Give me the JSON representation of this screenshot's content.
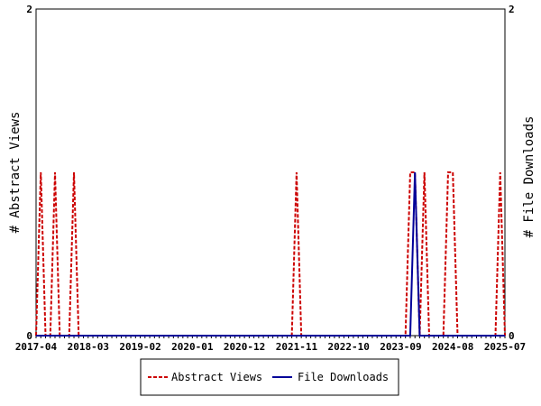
{
  "chart_data": {
    "type": "line",
    "title": "",
    "y_left_label": "# Abstract Views",
    "y_right_label": "# File Downloads",
    "y_left_range": [
      0,
      2
    ],
    "y_right_range": [
      0,
      2
    ],
    "y_left_ticks": [
      "0",
      "2"
    ],
    "y_right_ticks": [
      "0",
      "2"
    ],
    "x_range": [
      "2017-04",
      "2025-07"
    ],
    "x_tick_labels": [
      "2017-04",
      "2018-03",
      "2019-02",
      "2020-01",
      "2020-12",
      "2021-11",
      "2022-10",
      "2023-09",
      "2024-08",
      "2025-07"
    ],
    "grid": false,
    "legend_position": "bottom",
    "series": [
      {
        "name": "Abstract Views",
        "axis": "left",
        "color": "#cc0000",
        "style": "dashed",
        "points": [
          {
            "x": "2017-05",
            "y": 1
          },
          {
            "x": "2017-08",
            "y": 1
          },
          {
            "x": "2017-12",
            "y": 1
          },
          {
            "x": "2021-11",
            "y": 1
          },
          {
            "x": "2023-11",
            "y": 1
          },
          {
            "x": "2023-12",
            "y": 1
          },
          {
            "x": "2024-02",
            "y": 1
          },
          {
            "x": "2024-07",
            "y": 1
          },
          {
            "x": "2024-08",
            "y": 1
          },
          {
            "x": "2025-06",
            "y": 1
          }
        ]
      },
      {
        "name": "File Downloads",
        "axis": "right",
        "color": "#000099",
        "style": "solid",
        "points": [
          {
            "x": "2023-12",
            "y": 1
          }
        ]
      }
    ]
  }
}
